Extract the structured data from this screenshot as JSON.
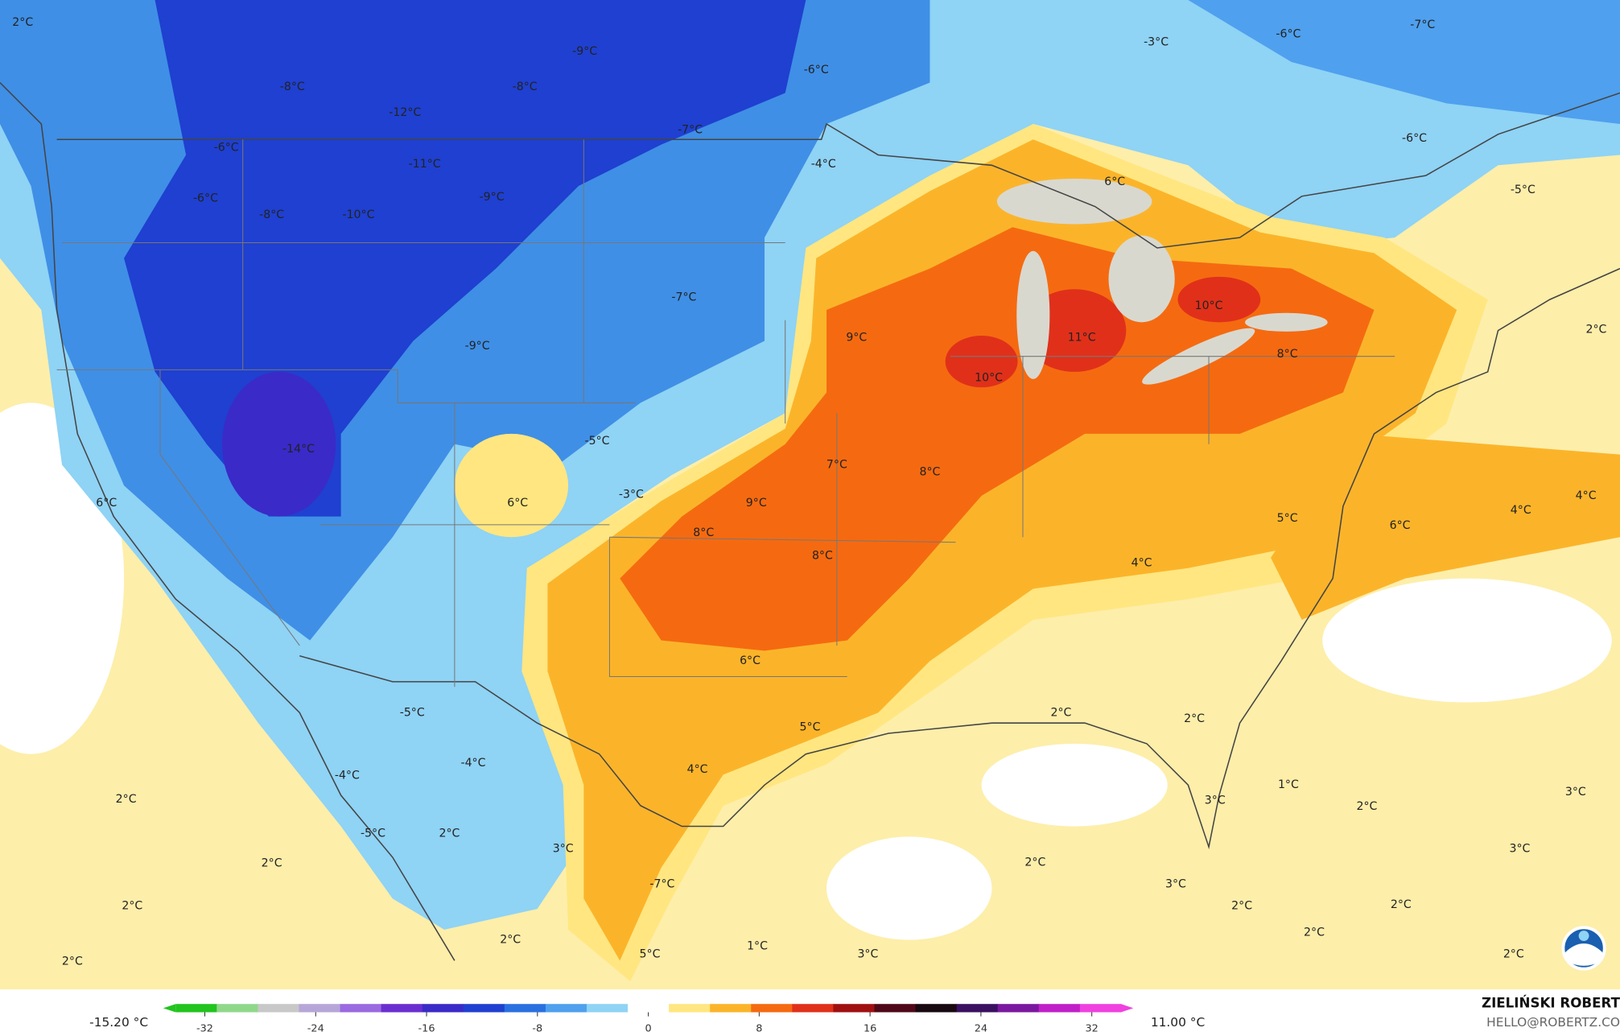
{
  "map": {
    "labels": [
      "-9°C",
      "-8°C",
      "-12°C",
      "-8°C",
      "-11°C",
      "-9°C",
      "-10°C",
      "-8°C",
      "-6°C",
      "-6°C",
      "-6°C",
      "-7°C",
      "-4°C",
      "-3°C",
      "-6°C",
      "-7°C",
      "-6°C",
      "-5°C",
      "2°C",
      "6°C",
      "10°C",
      "11°C",
      "8°C",
      "9°C",
      "10°C",
      "-7°C",
      "-9°C",
      "-14°C",
      "-5°C",
      "-3°C",
      "6°C",
      "7°C",
      "8°C",
      "9°C",
      "8°C",
      "8°C",
      "5°C",
      "4°C",
      "4°C",
      "6°C",
      "4°C",
      "6°C",
      "5°C",
      "4°C",
      "2°C",
      "2°C",
      "1°C",
      "2°C",
      "3°C",
      "3°C",
      "3°C",
      "2°C",
      "3°C",
      "2°C",
      "2°C",
      "2°C",
      "2°C",
      "3°C",
      "1°C",
      "5°C",
      "-7°C",
      "3°C",
      "2°C",
      "2°C",
      "-5°C",
      "-4°C",
      "-4°C",
      "-5°C",
      "2°C",
      "2°C",
      "2°C",
      "2°C",
      "2°C",
      "6°C"
    ]
  },
  "colorbar": {
    "min_label": "-15.20 °C",
    "max_label": "11.00 °C",
    "ticks": [
      -32,
      -24,
      -16,
      -8,
      0,
      8,
      16,
      24,
      32
    ],
    "lim": [
      -35,
      35
    ],
    "colors": [
      "#22c41e",
      "#8fd88a",
      "#c8c8c8",
      "#b6a6d8",
      "#9a6ae0",
      "#6a2ed0",
      "#3a2ac8",
      "#1f40d0",
      "#2a70e0",
      "#4fa0ee",
      "#8fd3f5",
      "#ffffff",
      "#ffe680",
      "#fbb42a",
      "#f56a10",
      "#e0301a",
      "#a01010",
      "#500818",
      "#180810",
      "#3a1060",
      "#7a18a0",
      "#c020c8",
      "#f040e0"
    ]
  },
  "credit": {
    "name": "ZIELIŃSKI ROBERT",
    "contact": "HELLO@ROBERTZ.CO"
  }
}
